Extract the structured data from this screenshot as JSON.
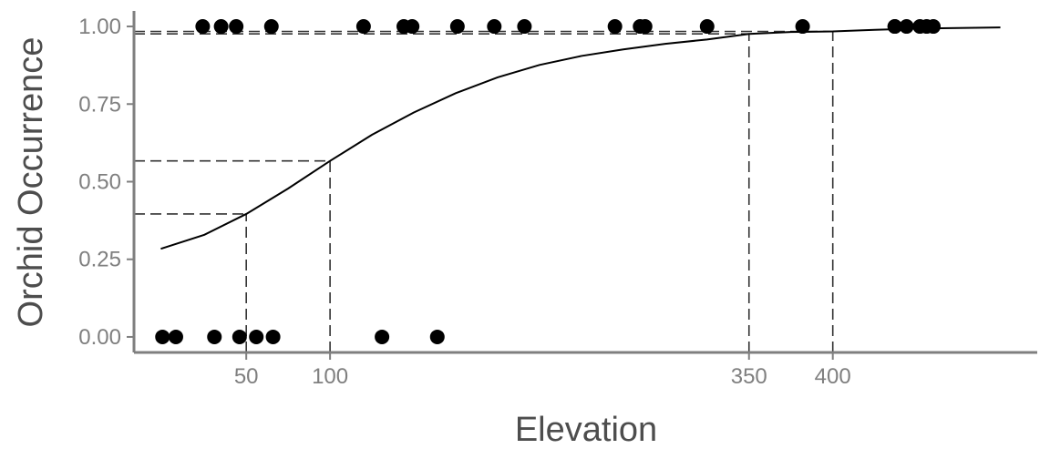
{
  "chart_data": {
    "type": "scatter",
    "title": "",
    "xlabel": "Elevation",
    "ylabel": "Orchid Occurrence",
    "xlim": [
      -17,
      522
    ],
    "ylim": [
      -0.05,
      1.05
    ],
    "x_ticks": [
      50,
      100,
      350,
      400
    ],
    "y_ticks": [
      0,
      0.25,
      0.5,
      0.75,
      1
    ],
    "y_tick_labels": [
      "0.00",
      "0.25",
      "0.50",
      "0.75",
      "1.00"
    ],
    "grid": false,
    "legend": "none",
    "point_color": "#000000",
    "curve_color": "#000000",
    "axis_color": "#7f7f7f",
    "points": [
      {
        "x": 65,
        "y": 1
      },
      {
        "x": 44,
        "y": 1
      },
      {
        "x": 24,
        "y": 1
      },
      {
        "x": 35,
        "y": 1
      },
      {
        "x": 120,
        "y": 1
      },
      {
        "x": 149,
        "y": 1
      },
      {
        "x": 144,
        "y": 1
      },
      {
        "x": 176,
        "y": 1
      },
      {
        "x": 198,
        "y": 1
      },
      {
        "x": 216,
        "y": 1
      },
      {
        "x": 270,
        "y": 1
      },
      {
        "x": 288,
        "y": 1
      },
      {
        "x": 285,
        "y": 1
      },
      {
        "x": 325,
        "y": 1
      },
      {
        "x": 382,
        "y": 1
      },
      {
        "x": 437,
        "y": 1
      },
      {
        "x": 437,
        "y": 1
      },
      {
        "x": 444,
        "y": 1
      },
      {
        "x": 452,
        "y": 1
      },
      {
        "x": 456,
        "y": 1
      },
      {
        "x": 460,
        "y": 1
      },
      {
        "x": 0,
        "y": 0
      },
      {
        "x": 8,
        "y": 0
      },
      {
        "x": 31,
        "y": 0
      },
      {
        "x": 46,
        "y": 0
      },
      {
        "x": 56,
        "y": 0
      },
      {
        "x": 66,
        "y": 0
      },
      {
        "x": 131,
        "y": 0
      },
      {
        "x": 164,
        "y": 0
      }
    ],
    "fit_curve": {
      "x": [
        -1,
        25,
        50,
        75,
        100,
        125,
        150,
        175,
        200,
        225,
        250,
        275,
        300,
        325,
        350,
        375,
        400,
        425,
        450,
        475,
        500
      ],
      "y": [
        0.284,
        0.329,
        0.396,
        0.478,
        0.567,
        0.651,
        0.723,
        0.785,
        0.836,
        0.876,
        0.905,
        0.926,
        0.944,
        0.958,
        0.976,
        0.982,
        0.984,
        0.989,
        0.993,
        0.995,
        0.997
      ]
    },
    "reference_lines": [
      {
        "x": 50,
        "y": 0.396
      },
      {
        "x": 100,
        "y": 0.567
      },
      {
        "x": 350,
        "y": 0.976
      },
      {
        "x": 400,
        "y": 0.984
      }
    ]
  }
}
